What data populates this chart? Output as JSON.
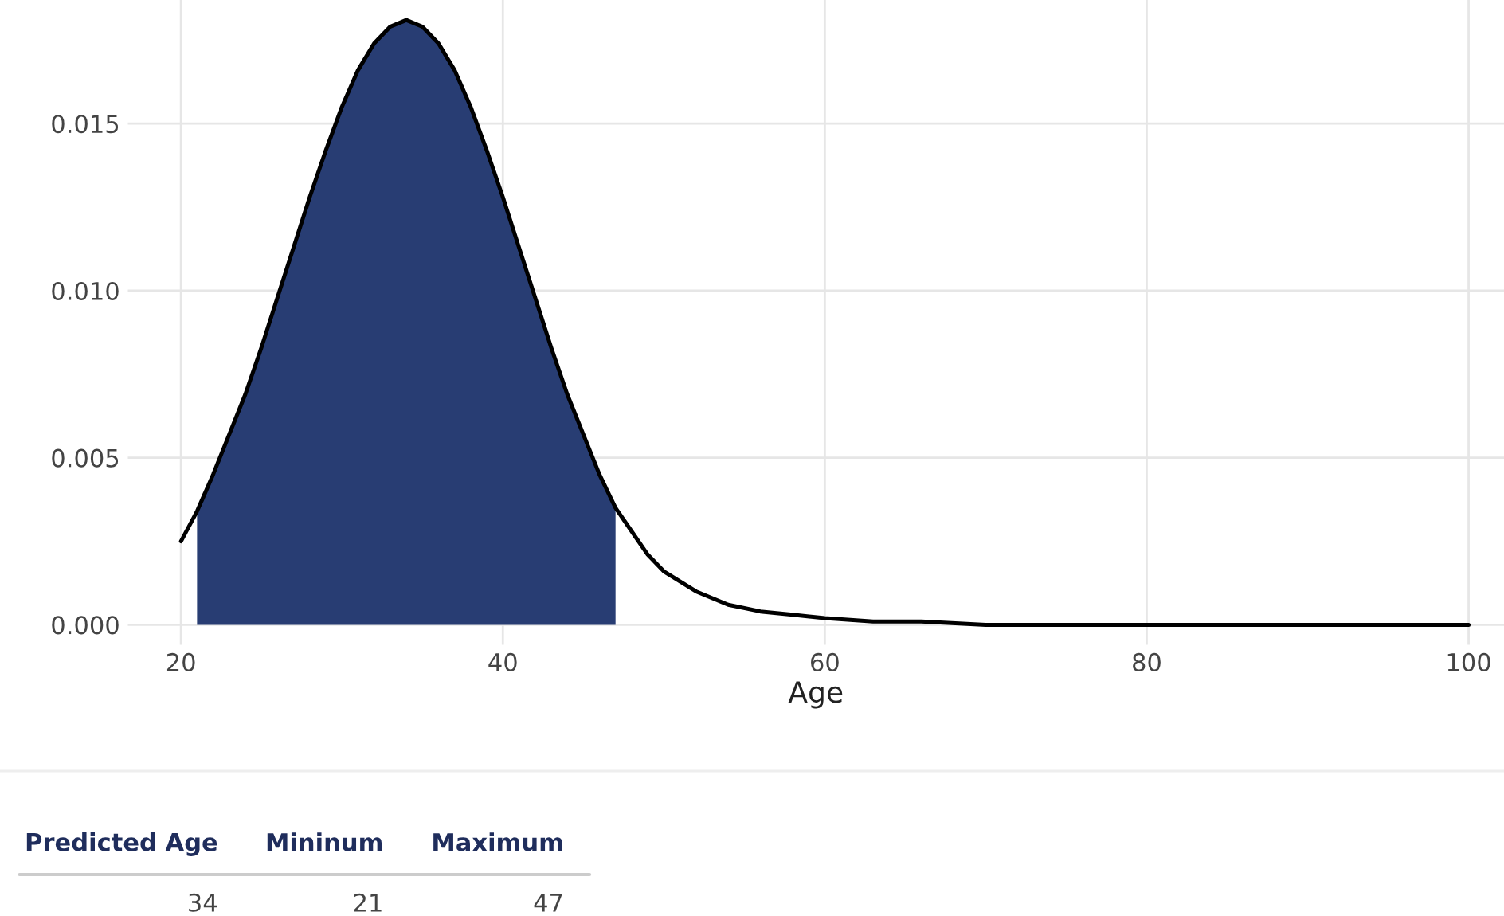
{
  "chart_data": {
    "type": "line",
    "xlabel": "Age",
    "series": [
      {
        "type": "area",
        "color": "#283d73",
        "x": [
          21,
          22,
          23,
          24,
          25,
          26,
          27,
          28,
          29,
          30,
          31,
          32,
          33,
          34,
          35,
          36,
          37,
          38,
          39,
          40,
          41,
          42,
          43,
          44,
          45,
          46,
          47
        ],
        "values": [
          0.0034,
          0.0045,
          0.0057,
          0.0069,
          0.0083,
          0.0098,
          0.0113,
          0.0128,
          0.0142,
          0.0155,
          0.0166,
          0.0174,
          0.0179,
          0.0181,
          0.0179,
          0.0174,
          0.0166,
          0.0155,
          0.0142,
          0.0128,
          0.0113,
          0.0098,
          0.0083,
          0.0069,
          0.0057,
          0.0045,
          0.0035
        ]
      },
      {
        "color": "#000000",
        "x": [
          20,
          21,
          22,
          23,
          24,
          25,
          26,
          27,
          28,
          29,
          30,
          31,
          32,
          33,
          34,
          35,
          36,
          37,
          38,
          39,
          40,
          41,
          42,
          43,
          44,
          45,
          46,
          47,
          48,
          49,
          50,
          52,
          54,
          56,
          58,
          60,
          63,
          66,
          70,
          80,
          90,
          100
        ],
        "values": [
          0.0025,
          0.0034,
          0.0045,
          0.0057,
          0.0069,
          0.0083,
          0.0098,
          0.0113,
          0.0128,
          0.0142,
          0.0155,
          0.0166,
          0.0174,
          0.0179,
          0.0181,
          0.0179,
          0.0174,
          0.0166,
          0.0155,
          0.0142,
          0.0128,
          0.0113,
          0.0098,
          0.0083,
          0.0069,
          0.0057,
          0.0045,
          0.0035,
          0.0028,
          0.0021,
          0.0016,
          0.001,
          0.0006,
          0.0004,
          0.0003,
          0.0002,
          0.0001,
          0.0001,
          0,
          0,
          0,
          0
        ]
      }
    ],
    "xlim": [
      16.7,
      102.2
    ],
    "xticks": [
      20,
      40,
      60,
      80,
      100
    ],
    "ylim": [
      -0.0006,
      0.0187
    ],
    "yticks": [
      {
        "value": 0,
        "label": "0.000"
      },
      {
        "value": 0.005,
        "label": "0.005"
      },
      {
        "value": 0.01,
        "label": "0.010"
      },
      {
        "value": 0.015,
        "label": "0.015"
      }
    ],
    "grid": true,
    "legend": false,
    "annotations": [
      "Predicted Age",
      "Mininum",
      "Maximum",
      "34",
      "21",
      "47"
    ]
  }
}
